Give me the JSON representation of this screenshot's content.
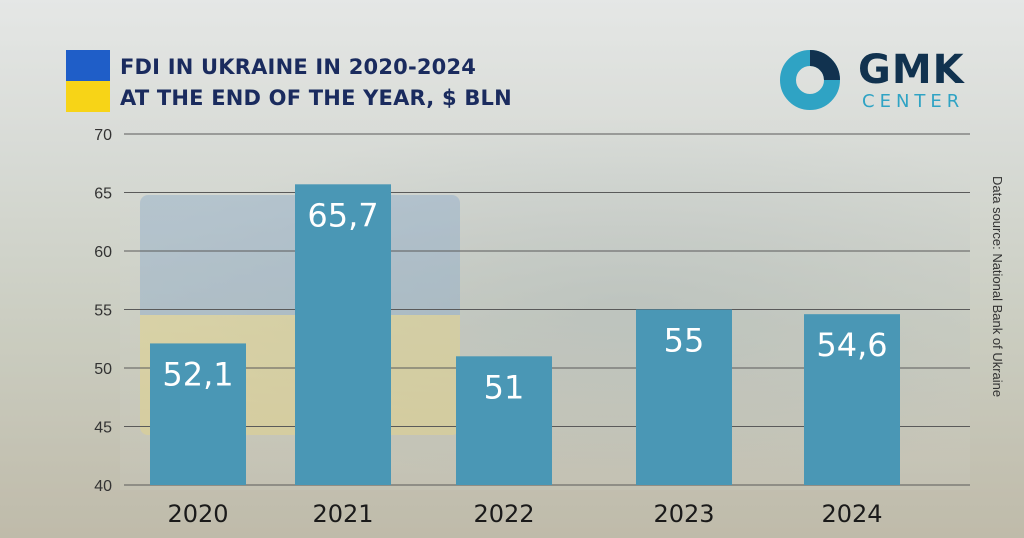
{
  "title_line1": "FDI IN UKRAINE IN 2020-2024",
  "title_line2": "AT THE END OF THE YEAR, $ BLN",
  "logo": {
    "name": "GMK",
    "sub": "CENTER"
  },
  "source": "Data source:  National Bank of Ukraine",
  "colors": {
    "bar": "#4a97b5",
    "title": "#1a2b5e",
    "logo_accent": "#2fa3c4",
    "flag_blue": "#1f5ec8",
    "flag_yellow": "#f7d417"
  },
  "chart_data": {
    "type": "bar",
    "categories": [
      "2020",
      "2021",
      "2022",
      "2023",
      "2024"
    ],
    "values": [
      52.1,
      65.7,
      51,
      55,
      54.6
    ],
    "value_labels": [
      "52,1",
      "65,7",
      "51",
      "55",
      "54,6"
    ],
    "title": "FDI IN UKRAINE IN 2020-2024 AT THE END OF THE YEAR, $ BLN",
    "xlabel": "",
    "ylabel": "",
    "ylim": [
      40,
      70
    ],
    "yticks": [
      40,
      45,
      50,
      55,
      60,
      65,
      70
    ],
    "grid": true,
    "legend": "none"
  }
}
